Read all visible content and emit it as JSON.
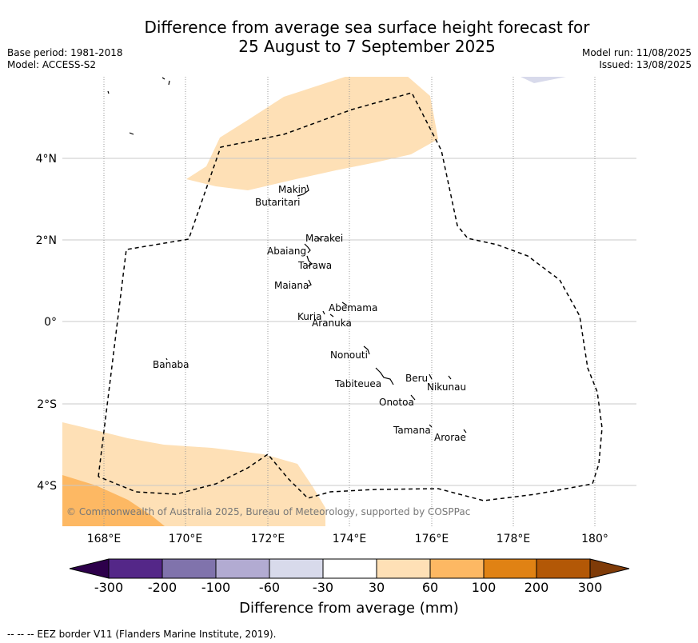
{
  "header": {
    "title_line1": "Difference from average sea surface height forecast for",
    "title_line2": "25 August to 7 September 2025",
    "base_period": "Base period: 1981-2018",
    "model": "Model: ACCESS-S2",
    "model_run": "Model run: 11/08/2025",
    "issued": "Issued: 13/08/2025"
  },
  "map": {
    "lon_ticks": [
      "168°E",
      "170°E",
      "172°E",
      "174°E",
      "176°E",
      "178°E",
      "180°"
    ],
    "lat_ticks": [
      "4°N",
      "2°N",
      "0°",
      "2°S",
      "4°S"
    ],
    "places": [
      "Makin",
      "Butaritari",
      "Marakei",
      "Abaiang",
      "Tarawa",
      "Maiana",
      "Abemama",
      "Kuria",
      "Aranuka",
      "Nonouti",
      "Banaba",
      "Beru",
      "Nikunau",
      "Tabiteuea",
      "Onotoa",
      "Tamana",
      "Arorae"
    ],
    "copyright": "© Commonwealth of Australia 2025, Bureau of Meteorology, supported by COSPPac"
  },
  "colorbar": {
    "label": "Difference from average (mm)",
    "ticks": [
      "-300",
      "-200",
      "-100",
      "-60",
      "-30",
      "30",
      "60",
      "100",
      "200",
      "300"
    ],
    "colors": {
      "lt_-300": "#2d004b",
      "-300_-200": "#542788",
      "-200_-100": "#8073ac",
      "-100_-60": "#b2abd2",
      "-60_-30": "#d8daeb",
      "-30_30": "#ffffff",
      "30_60": "#fee0b6",
      "60_100": "#fdb863",
      "100_200": "#e08214",
      "200_300": "#b35806",
      "gt_300": "#7f3b08"
    }
  },
  "footer": {
    "eez_note": "-- -- -- EEZ border V11 (Flanders Marine Institute, 2019)."
  }
}
